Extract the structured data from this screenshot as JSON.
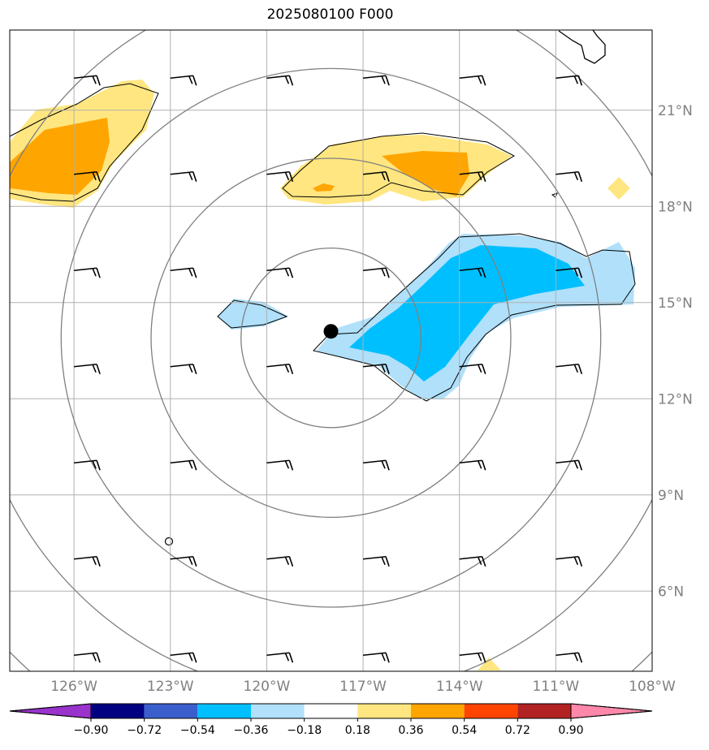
{
  "map": {
    "title": "2025080100 F000",
    "lon_min": -128,
    "lon_max": -108,
    "lat_min": 3.5,
    "lat_max": 23.5,
    "lon_ticks": [
      {
        "value": -126,
        "label": "126°W"
      },
      {
        "value": -123,
        "label": "123°W"
      },
      {
        "value": -120,
        "label": "120°W"
      },
      {
        "value": -117,
        "label": "117°W"
      },
      {
        "value": -114,
        "label": "114°W"
      },
      {
        "value": -111,
        "label": "111°W"
      },
      {
        "value": -108,
        "label": "108°W"
      }
    ],
    "lat_ticks": [
      {
        "value": 6,
        "label": "6°N"
      },
      {
        "value": 9,
        "label": "9°N"
      },
      {
        "value": 12,
        "label": "12°N"
      },
      {
        "value": 15,
        "label": "15°N"
      },
      {
        "value": 18,
        "label": "18°N"
      },
      {
        "value": 21,
        "label": "21°N"
      }
    ],
    "storm_center": {
      "lon": -118,
      "lat": 13.9
    },
    "range_rings_deg": [
      2.8,
      5.6,
      8.4,
      11.2,
      14.0
    ],
    "barb_lons": [
      -126,
      -123,
      -120,
      -117,
      -114,
      -111,
      -108
    ],
    "barb_lats": [
      22,
      19,
      16,
      13,
      10,
      7,
      4
    ],
    "colorbar": {
      "levels": [
        "-0.90",
        "-0.72",
        "-0.54",
        "-0.36",
        "-0.18",
        "0.18",
        "0.36",
        "0.54",
        "0.72",
        "0.90"
      ],
      "colors": [
        "#9933cc",
        "#000080",
        "#3a5fcd",
        "#00bfff",
        "#b0e0fa",
        "#ffffff",
        "#ffe680",
        "#ffa500",
        "#ff4500",
        "#b22222",
        "#ff88aa"
      ]
    },
    "colors": {
      "grid": "#b0b0b0",
      "ring": "#808080",
      "positive_1": "#ffe680",
      "positive_2": "#ffa500",
      "negative_1": "#b0e0fa",
      "negative_2": "#00bfff"
    }
  }
}
